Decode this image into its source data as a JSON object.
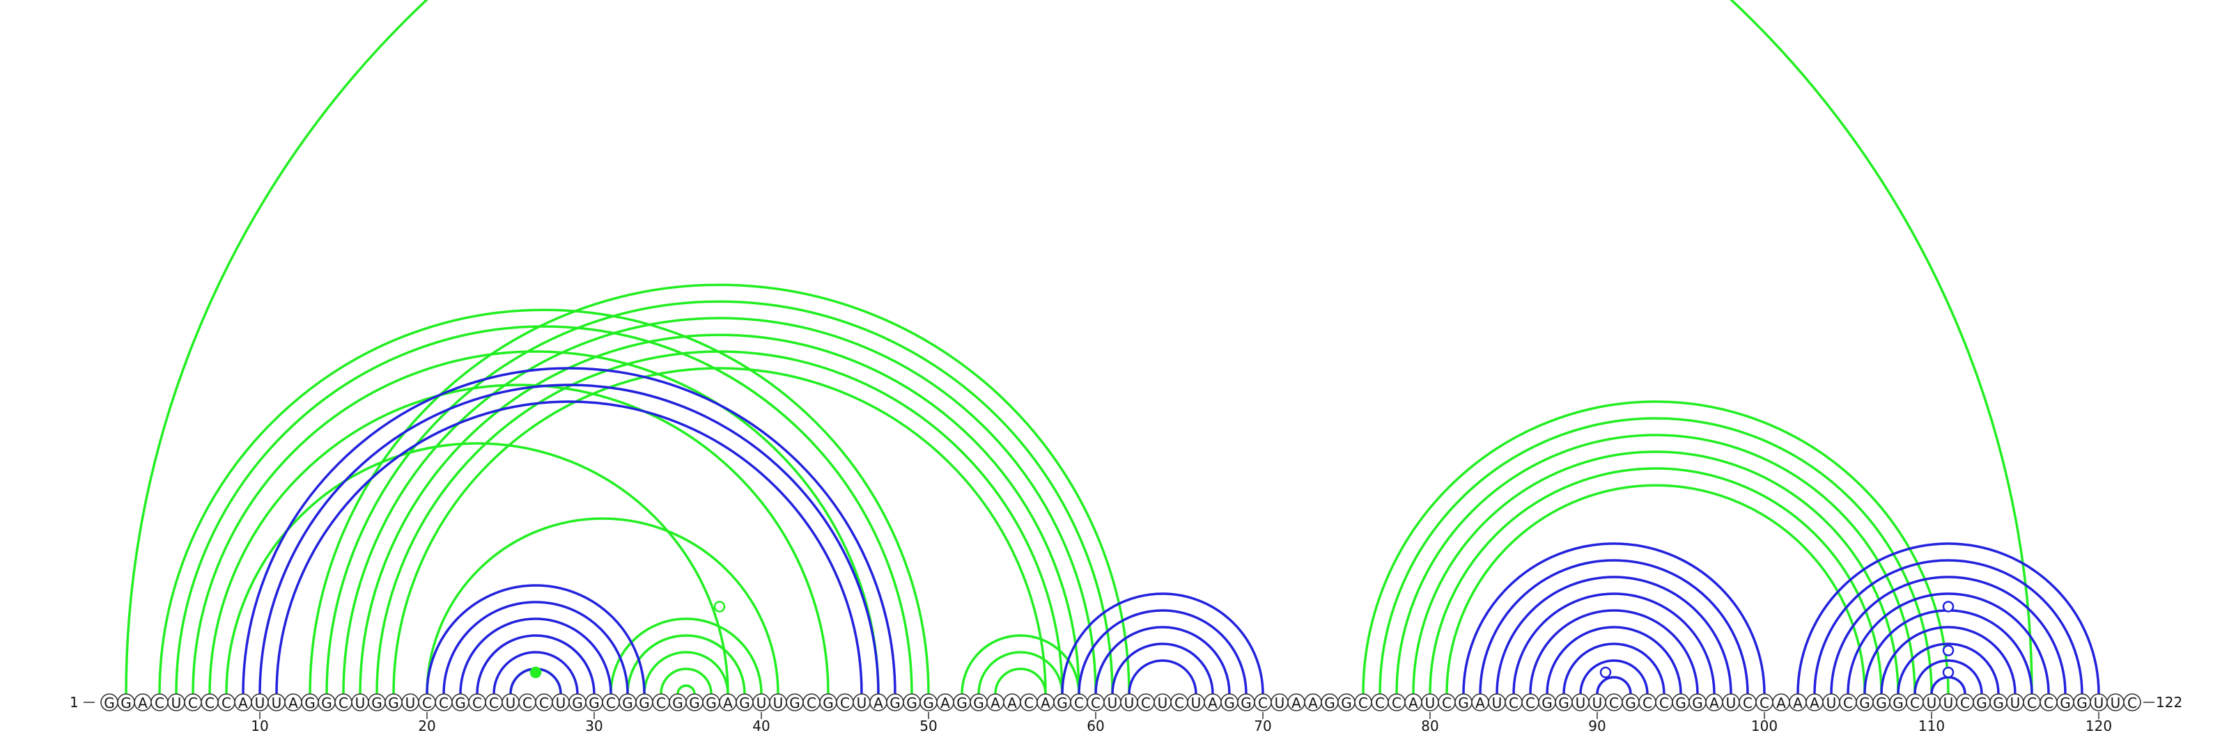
{
  "sequence": "GGACUCCCAUUAGGCUGGUCCGCCUCCUGGCGGCGGGAGUUGCGCUAGGGAGGAACAGCCUUCUCUAGGCUAAGGCCCAUCGAUCCGGUUCGCCGGAUCCAAAUCGGGCUUCGGUCCGGUUC",
  "start_label": "1",
  "end_label": "122",
  "ticks": [
    "10",
    "20",
    "30",
    "40",
    "50",
    "60",
    "70",
    "80",
    "90",
    "100",
    "110",
    "120"
  ],
  "colors": {
    "green": "#22ee22",
    "blue": "#2222dd",
    "frame": "#333333"
  },
  "chart_data": {
    "type": "arc-diagram",
    "length": 122,
    "arcs_green": [
      [
        2,
        116
      ],
      [
        4,
        50
      ],
      [
        5,
        49
      ],
      [
        6,
        47
      ],
      [
        7,
        44
      ],
      [
        8,
        38
      ],
      [
        13,
        62
      ],
      [
        14,
        61
      ],
      [
        15,
        60
      ],
      [
        16,
        59
      ],
      [
        17,
        58
      ],
      [
        18,
        57
      ],
      [
        20,
        41
      ],
      [
        31,
        40
      ],
      [
        32,
        39
      ],
      [
        33,
        38
      ],
      [
        34,
        37
      ],
      [
        35,
        36
      ],
      [
        52,
        59
      ],
      [
        53,
        58
      ],
      [
        54,
        57
      ],
      [
        76,
        111
      ],
      [
        77,
        110
      ],
      [
        78,
        109
      ],
      [
        79,
        108
      ],
      [
        80,
        107
      ],
      [
        81,
        106
      ],
      [
        25,
        28
      ]
    ],
    "arcs_blue": [
      [
        9,
        48
      ],
      [
        10,
        47
      ],
      [
        11,
        46
      ],
      [
        20,
        33
      ],
      [
        21,
        32
      ],
      [
        22,
        31
      ],
      [
        23,
        30
      ],
      [
        24,
        29
      ],
      [
        25,
        28
      ],
      [
        58,
        70
      ],
      [
        59,
        69
      ],
      [
        60,
        68
      ],
      [
        61,
        67
      ],
      [
        62,
        66
      ],
      [
        82,
        100
      ],
      [
        83,
        99
      ],
      [
        84,
        98
      ],
      [
        85,
        97
      ],
      [
        86,
        96
      ],
      [
        87,
        95
      ],
      [
        88,
        94
      ],
      [
        89,
        93
      ],
      [
        90,
        92
      ],
      [
        102,
        120
      ],
      [
        103,
        119
      ],
      [
        104,
        118
      ],
      [
        105,
        117
      ],
      [
        106,
        116
      ],
      [
        107,
        115
      ],
      [
        108,
        114
      ],
      [
        109,
        113
      ],
      [
        110,
        112
      ]
    ],
    "markers": [
      {
        "pos": 26.5,
        "level": 1,
        "color": "green",
        "filled": true
      },
      {
        "pos": 37.5,
        "level": 4,
        "color": "green",
        "filled": false
      },
      {
        "pos": 90.5,
        "level": 1,
        "color": "blue",
        "filled": false
      },
      {
        "pos": 111,
        "level": 1,
        "color": "blue",
        "filled": false
      },
      {
        "pos": 111,
        "level": 2,
        "color": "blue",
        "filled": false
      },
      {
        "pos": 111,
        "level": 4,
        "color": "blue",
        "filled": false
      }
    ]
  }
}
